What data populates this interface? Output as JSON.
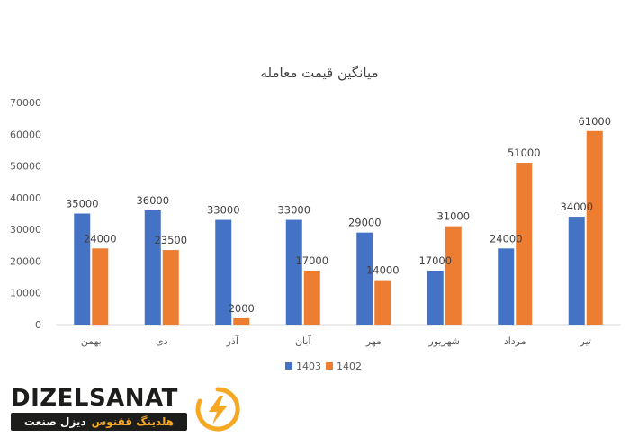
{
  "chart_data": {
    "type": "bar",
    "title": "میانگین قیمت معامله",
    "categories": [
      "بهمن",
      "دی",
      "آذر",
      "آبان",
      "مهر",
      "شهریور",
      "مرداد",
      "تیر"
    ],
    "series": [
      {
        "name": "1403",
        "color": "#4472c4",
        "values": [
          35000,
          36000,
          33000,
          33000,
          29000,
          17000,
          24000,
          34000
        ]
      },
      {
        "name": "1402",
        "color": "#ed7d31",
        "values": [
          24000,
          23500,
          2000,
          17000,
          14000,
          31000,
          51000,
          61000
        ]
      }
    ],
    "data_labels": [
      [
        "35000",
        "36000",
        "33000",
        "33000",
        "29000",
        "17000",
        "24000",
        "34000"
      ],
      [
        "24000",
        "23500",
        "2000",
        "17000",
        "14000",
        "31000",
        "51000",
        "61000"
      ]
    ],
    "ylim": [
      0,
      70000
    ],
    "yticks": [
      "0",
      "10000",
      "20000",
      "30000",
      "40000",
      "50000",
      "60000",
      "70000"
    ],
    "grid": false,
    "legend_position": "bottom"
  },
  "brand": {
    "word1": "DIZEL",
    "word2": "SANAT",
    "tagline_accent": "هلدینگ ققنوس",
    "tagline_rest": "دیزل صنعت",
    "accent_color": "#f6a823",
    "logo_icon": "lightning-ring-icon"
  }
}
